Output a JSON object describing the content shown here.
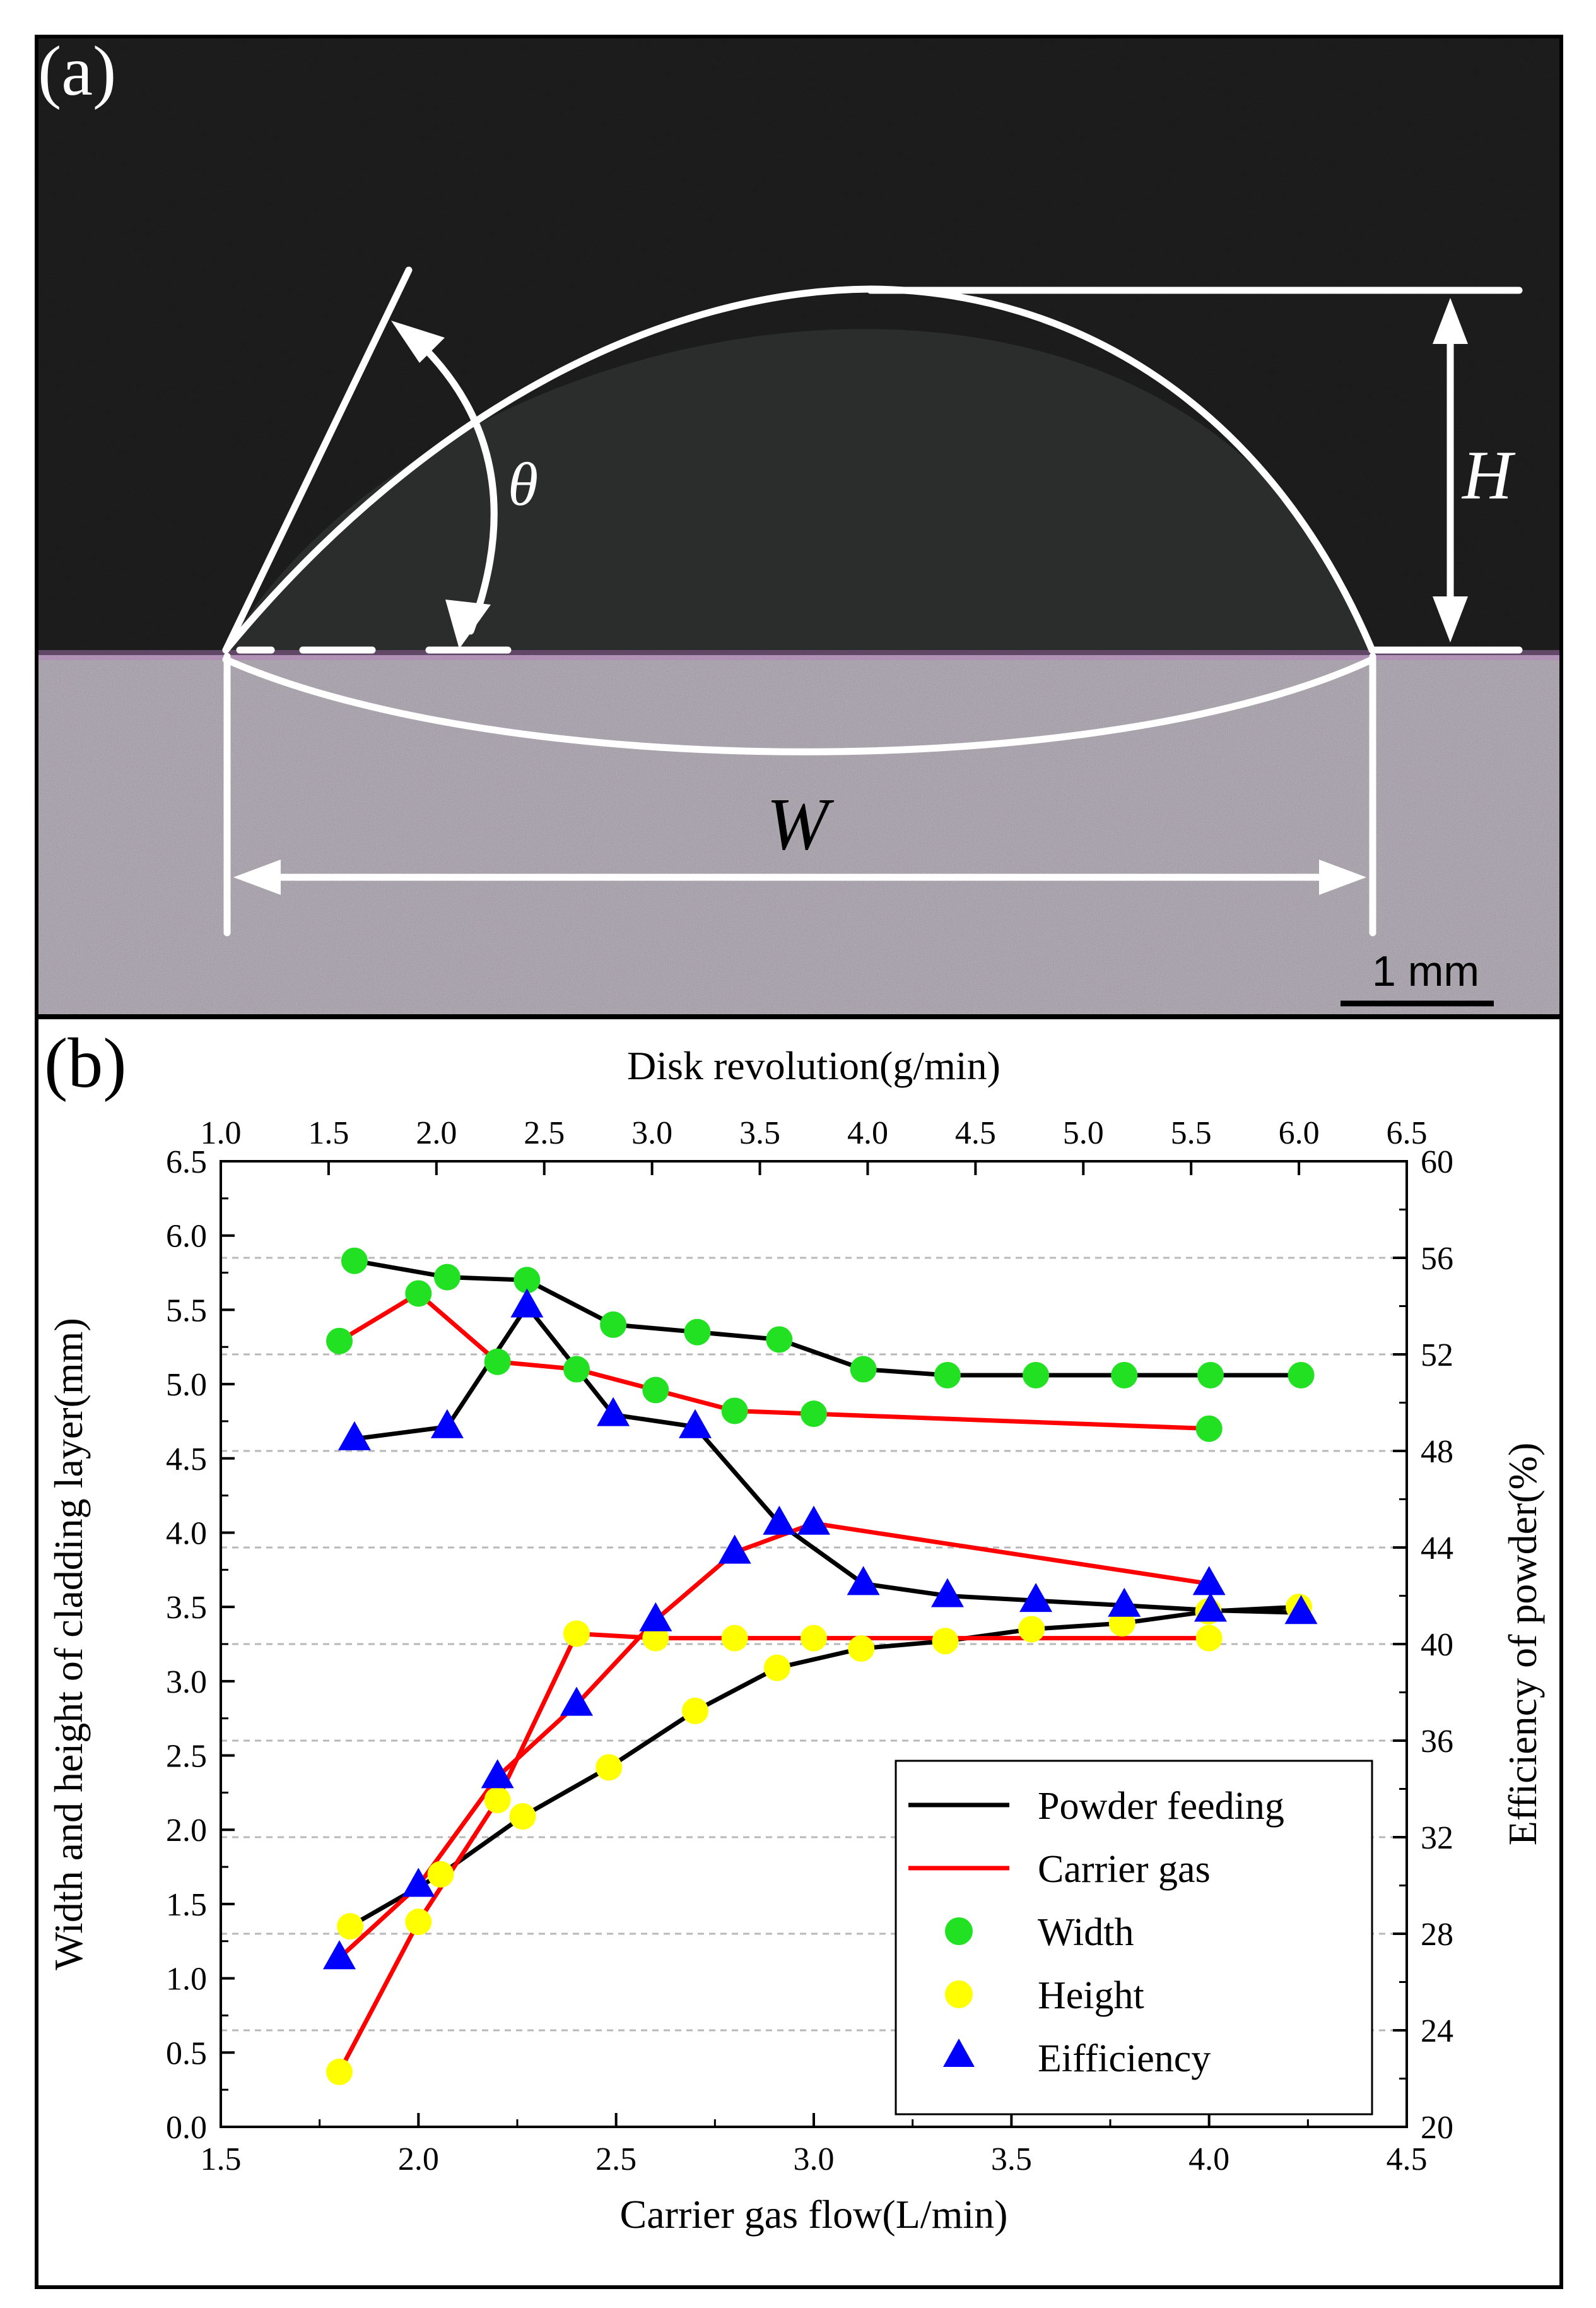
{
  "panel_a": {
    "label": "(a)",
    "angle_symbol": "θ",
    "height_symbol": "H",
    "width_symbol": "W",
    "scale_bar_label": "1 mm",
    "colors": {
      "background": "#121212",
      "substrate": "#a39aa7",
      "annotation": "#ffffff"
    }
  },
  "panel_b": {
    "label": "(b)"
  },
  "chart_data": {
    "type": "line",
    "title": "",
    "xlabel": "Carrier gas flow(L/min)",
    "x2label": "Disk revolution(g/min)",
    "ylabel": "Width and height of cladding layer(mm)",
    "y2label": "Efficiency of powder(%)",
    "xlim": [
      1.5,
      4.5
    ],
    "x2lim": [
      1.0,
      6.5
    ],
    "ylim": [
      0.0,
      6.5
    ],
    "y2lim": [
      20,
      60
    ],
    "xticks": [
      1.5,
      2.0,
      2.5,
      3.0,
      3.5,
      4.0,
      4.5
    ],
    "x2ticks": [
      1.0,
      1.5,
      2.0,
      2.5,
      3.0,
      3.5,
      4.0,
      4.5,
      5.0,
      5.5,
      6.0,
      6.5
    ],
    "yticks": [
      0.0,
      0.5,
      1.0,
      1.5,
      2.0,
      2.5,
      3.0,
      3.5,
      4.0,
      4.5,
      5.0,
      5.5,
      6.0,
      6.5
    ],
    "y2ticks": [
      20,
      24,
      28,
      32,
      36,
      40,
      44,
      48,
      52,
      56,
      60
    ],
    "tick_decimals": {
      "x": 1,
      "x2": 1,
      "y": 1,
      "y2": 0
    },
    "grid": "horizontal dashed",
    "legend_position": "bottom-right",
    "legend": [
      "Powder feeding",
      "Carrier gas",
      "Width",
      "Height",
      "Eifficiency"
    ],
    "colors": {
      "powder_feeding": "#000000",
      "carrier_gas": "#ff0000",
      "width": "#22e022",
      "height": "#ffff00",
      "efficiency": "#0000ff"
    },
    "series": [
      {
        "name": "Powder feeding Width",
        "group": "powder_feeding",
        "kind": "width",
        "axis": "x2-y",
        "x": [
          1.62,
          2.05,
          2.42,
          2.82,
          3.21,
          3.59,
          3.98,
          4.37,
          4.78,
          5.19,
          5.59,
          6.01
        ],
        "values": [
          5.83,
          5.72,
          5.7,
          5.4,
          5.35,
          5.3,
          5.1,
          5.06,
          5.06,
          5.06,
          5.06,
          5.06
        ]
      },
      {
        "name": "Powder feeding Height",
        "group": "powder_feeding",
        "kind": "height",
        "axis": "x2-y",
        "x": [
          1.6,
          2.02,
          2.4,
          2.8,
          3.2,
          3.58,
          3.97,
          4.36,
          4.76,
          5.18,
          5.58,
          6.0
        ],
        "values": [
          1.35,
          1.7,
          2.09,
          2.42,
          2.8,
          3.09,
          3.22,
          3.27,
          3.35,
          3.39,
          3.47,
          3.5
        ]
      },
      {
        "name": "Powder feeding Efficiency",
        "group": "powder_feeding",
        "kind": "efficiency",
        "axis": "x2-y2",
        "x": [
          1.62,
          2.05,
          2.42,
          2.82,
          3.2,
          3.59,
          3.98,
          4.37,
          4.78,
          5.19,
          5.59,
          6.01
        ],
        "values": [
          48.5,
          49.0,
          54.0,
          49.5,
          49.0,
          45.0,
          42.5,
          42.0,
          41.8,
          41.6,
          41.4,
          41.3
        ]
      },
      {
        "name": "Carrier gas Width",
        "group": "carrier_gas",
        "kind": "width",
        "axis": "x-y",
        "x": [
          1.8,
          2.0,
          2.2,
          2.4,
          2.6,
          2.8,
          3.0,
          4.0
        ],
        "values": [
          5.29,
          5.61,
          5.15,
          5.1,
          4.96,
          4.82,
          4.8,
          4.7
        ]
      },
      {
        "name": "Carrier gas Height",
        "group": "carrier_gas",
        "kind": "height",
        "axis": "x-y",
        "x": [
          1.8,
          2.0,
          2.2,
          2.4,
          2.6,
          2.8,
          3.0,
          4.0
        ],
        "values": [
          0.37,
          1.38,
          2.2,
          3.32,
          3.29,
          3.29,
          3.29,
          3.29
        ]
      },
      {
        "name": "Carrier gas Efficiency",
        "group": "carrier_gas",
        "kind": "efficiency",
        "axis": "x-y2",
        "x": [
          1.8,
          2.0,
          2.2,
          2.4,
          2.6,
          2.8,
          3.0,
          4.0
        ],
        "values": [
          27.0,
          30.0,
          34.5,
          37.5,
          41.0,
          43.8,
          45.0,
          42.5
        ]
      }
    ]
  }
}
